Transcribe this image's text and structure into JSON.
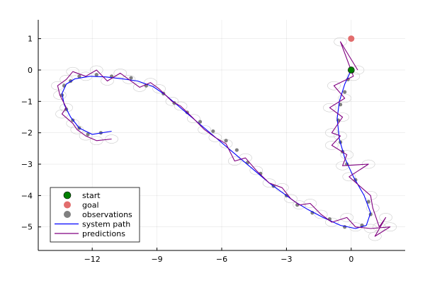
{
  "chart_data": {
    "type": "scatter",
    "xlim": [
      -14.5,
      2.5
    ],
    "ylim": [
      -5.75,
      1.6
    ],
    "xticks": [
      -12,
      -9,
      -6,
      -3,
      0
    ],
    "xtick_labels": [
      "−12",
      "−9",
      "−6",
      "−3",
      "0"
    ],
    "yticks": [
      1,
      0,
      -1,
      -2,
      -3,
      -4,
      -5
    ],
    "ytick_labels": [
      "1",
      "0",
      "−1",
      "−2",
      "−3",
      "−4",
      "−5"
    ],
    "grid": true,
    "legend_position": "bottom-left",
    "series": [
      {
        "name": "start",
        "kind": "marker",
        "color": "#008000",
        "points": [
          [
            0.0,
            0.0
          ]
        ]
      },
      {
        "name": "goal",
        "kind": "marker",
        "color": "#e26d6d",
        "points": [
          [
            0.0,
            1.0
          ]
        ]
      },
      {
        "name": "observations",
        "kind": "marker",
        "color": "#808080",
        "points": [
          [
            0.05,
            -0.05
          ],
          [
            -0.15,
            -0.3
          ],
          [
            -0.3,
            -0.7
          ],
          [
            -0.5,
            -1.1
          ],
          [
            -0.6,
            -1.6
          ],
          [
            -0.5,
            -2.3
          ],
          [
            -0.4,
            -2.6
          ],
          [
            -0.2,
            -3.0
          ],
          [
            0.2,
            -3.5
          ],
          [
            0.8,
            -4.2
          ],
          [
            0.9,
            -4.6
          ],
          [
            0.5,
            -4.95
          ],
          [
            -0.3,
            -5.0
          ],
          [
            -1.0,
            -4.75
          ],
          [
            -1.8,
            -4.55
          ],
          [
            -2.5,
            -4.3
          ],
          [
            -3.0,
            -4.0
          ],
          [
            -3.6,
            -3.7
          ],
          [
            -4.2,
            -3.3
          ],
          [
            -4.8,
            -2.95
          ],
          [
            -5.3,
            -2.55
          ],
          [
            -5.8,
            -2.25
          ],
          [
            -6.4,
            -1.95
          ],
          [
            -7.0,
            -1.65
          ],
          [
            -7.6,
            -1.35
          ],
          [
            -8.2,
            -1.05
          ],
          [
            -8.7,
            -0.75
          ],
          [
            -9.5,
            -0.5
          ],
          [
            -10.2,
            -0.25
          ],
          [
            -11.1,
            -0.2
          ],
          [
            -11.8,
            -0.15
          ],
          [
            -12.6,
            -0.2
          ],
          [
            -13.0,
            -0.35
          ],
          [
            -13.3,
            -0.5
          ],
          [
            -13.4,
            -0.8
          ],
          [
            -13.2,
            -1.25
          ],
          [
            -12.9,
            -1.6
          ],
          [
            -12.6,
            -1.85
          ],
          [
            -12.2,
            -2.05
          ],
          [
            -11.6,
            -2.0
          ]
        ]
      },
      {
        "name": "system path",
        "kind": "line",
        "color": "#0000ff",
        "points": [
          [
            0.0,
            0.0
          ],
          [
            -0.3,
            -0.45
          ],
          [
            -0.55,
            -1.0
          ],
          [
            -0.65,
            -1.55
          ],
          [
            -0.55,
            -2.2
          ],
          [
            -0.3,
            -2.8
          ],
          [
            0.1,
            -3.4
          ],
          [
            0.6,
            -4.0
          ],
          [
            0.9,
            -4.55
          ],
          [
            0.7,
            -4.95
          ],
          [
            0.2,
            -5.05
          ],
          [
            -0.5,
            -4.95
          ],
          [
            -1.3,
            -4.7
          ],
          [
            -2.0,
            -4.45
          ],
          [
            -2.6,
            -4.2
          ],
          [
            -3.2,
            -3.9
          ],
          [
            -3.8,
            -3.6
          ],
          [
            -4.4,
            -3.25
          ],
          [
            -5.0,
            -2.9
          ],
          [
            -5.6,
            -2.55
          ],
          [
            -6.2,
            -2.2
          ],
          [
            -6.8,
            -1.85
          ],
          [
            -7.4,
            -1.5
          ],
          [
            -8.0,
            -1.15
          ],
          [
            -8.6,
            -0.8
          ],
          [
            -9.2,
            -0.52
          ],
          [
            -9.9,
            -0.35
          ],
          [
            -10.6,
            -0.28
          ],
          [
            -11.4,
            -0.22
          ],
          [
            -12.1,
            -0.2
          ],
          [
            -12.8,
            -0.28
          ],
          [
            -13.2,
            -0.45
          ],
          [
            -13.4,
            -0.75
          ],
          [
            -13.3,
            -1.1
          ],
          [
            -13.0,
            -1.5
          ],
          [
            -12.6,
            -1.85
          ],
          [
            -12.0,
            -2.05
          ],
          [
            -11.1,
            -1.95
          ]
        ]
      },
      {
        "name": "predictions",
        "kind": "line",
        "color": "#800080",
        "points": [
          [
            0.3,
            0.0
          ],
          [
            -0.5,
            0.9
          ],
          [
            0.1,
            -0.2
          ],
          [
            -0.8,
            -0.5
          ],
          [
            -0.3,
            -0.9
          ],
          [
            -1.0,
            -1.2
          ],
          [
            -0.4,
            -1.5
          ],
          [
            -0.9,
            -2.0
          ],
          [
            -0.5,
            -2.1
          ],
          [
            -0.9,
            -2.4
          ],
          [
            -0.2,
            -2.7
          ],
          [
            -0.4,
            -3.05
          ],
          [
            0.8,
            -3.0
          ],
          [
            -0.1,
            -3.4
          ],
          [
            0.9,
            -4.0
          ],
          [
            1.0,
            -4.4
          ],
          [
            1.3,
            -5.0
          ],
          [
            1.6,
            -4.7
          ],
          [
            1.1,
            -5.3
          ],
          [
            1.8,
            -5.0
          ],
          [
            0.9,
            -5.05
          ],
          [
            0.2,
            -5.0
          ],
          [
            -0.2,
            -4.7
          ],
          [
            -0.9,
            -4.85
          ],
          [
            -1.4,
            -4.6
          ],
          [
            -1.9,
            -4.25
          ],
          [
            -2.4,
            -4.3
          ],
          [
            -2.8,
            -4.1
          ],
          [
            -3.2,
            -3.75
          ],
          [
            -3.8,
            -3.6
          ],
          [
            -4.4,
            -3.2
          ],
          [
            -4.9,
            -2.8
          ],
          [
            -5.4,
            -2.9
          ],
          [
            -5.8,
            -2.35
          ],
          [
            -6.3,
            -2.15
          ],
          [
            -6.8,
            -1.9
          ],
          [
            -7.3,
            -1.55
          ],
          [
            -7.9,
            -1.15
          ],
          [
            -8.3,
            -1.0
          ],
          [
            -8.9,
            -0.6
          ],
          [
            -9.3,
            -0.4
          ],
          [
            -9.8,
            -0.55
          ],
          [
            -10.3,
            -0.3
          ],
          [
            -10.7,
            -0.1
          ],
          [
            -11.3,
            -0.35
          ],
          [
            -11.8,
            0.0
          ],
          [
            -12.3,
            -0.2
          ],
          [
            -12.9,
            -0.05
          ],
          [
            -13.2,
            -0.3
          ],
          [
            -13.6,
            -0.5
          ],
          [
            -13.5,
            -0.8
          ],
          [
            -13.2,
            -1.2
          ],
          [
            -13.4,
            -1.4
          ],
          [
            -12.9,
            -1.7
          ],
          [
            -12.7,
            -1.9
          ],
          [
            -12.3,
            -2.1
          ],
          [
            -11.8,
            -2.25
          ],
          [
            -11.1,
            -2.2
          ]
        ]
      }
    ]
  }
}
